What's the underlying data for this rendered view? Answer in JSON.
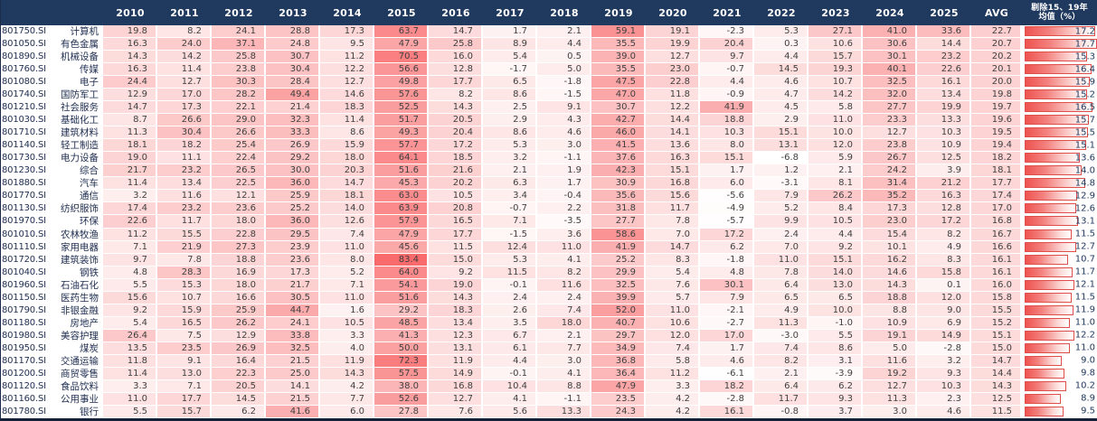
{
  "chart_data": {
    "type": "heatmap",
    "title": "",
    "columns": [
      "2010",
      "2011",
      "2012",
      "2013",
      "2014",
      "2015",
      "2016",
      "2017",
      "2018",
      "2019",
      "2020",
      "2021",
      "2022",
      "2023",
      "2024",
      "2025"
    ],
    "avg_label": "AVG",
    "excl_label_line1": "剔除15、19年",
    "excl_label_line2": "均值（%）",
    "legend_position": "none",
    "color_scale": {
      "min": -7,
      "max": 84,
      "low_color": "#ffffff",
      "high_color": "#f8696b"
    },
    "bar_scale_max": 17.7,
    "rows": [
      {
        "code": "801750.SI",
        "name": "计算机",
        "values": [
          19.8,
          8.2,
          24.1,
          28.8,
          17.3,
          63.7,
          14.7,
          1.7,
          2.1,
          59.1,
          19.1,
          -2.3,
          5.3,
          27.1,
          41.0,
          33.6
        ],
        "avg": 22.7,
        "excl": 17.2
      },
      {
        "code": "801050.SI",
        "name": "有色金属",
        "values": [
          16.3,
          24.0,
          37.1,
          24.8,
          9.5,
          47.9,
          25.8,
          8.9,
          4.4,
          35.5,
          19.9,
          20.4,
          0.3,
          10.6,
          30.6,
          14.4
        ],
        "avg": 20.7,
        "excl": 17.7
      },
      {
        "code": "801890.SI",
        "name": "机械设备",
        "values": [
          14.3,
          14.2,
          25.8,
          30.7,
          11.2,
          70.5,
          16.0,
          5.4,
          0.5,
          39.0,
          12.7,
          9.7,
          4.4,
          15.7,
          30.1,
          23.2
        ],
        "avg": 20.2,
        "excl": 15.3
      },
      {
        "code": "801760.SI",
        "name": "传媒",
        "values": [
          16.3,
          11.4,
          23.8,
          30.4,
          12.2,
          56.6,
          12.8,
          -1.7,
          5.0,
          35.5,
          23.0,
          -0.7,
          14.5,
          19.3,
          40.1,
          22.6
        ],
        "avg": 20.1,
        "excl": 16.4
      },
      {
        "code": "801080.SI",
        "name": "电子",
        "values": [
          24.4,
          12.7,
          30.3,
          28.4,
          12.7,
          49.8,
          17.7,
          6.5,
          -1.8,
          47.5,
          22.8,
          4.4,
          4.6,
          10.7,
          32.5,
          16.1
        ],
        "avg": 20.0,
        "excl": 15.9
      },
      {
        "code": "801740.SI",
        "name": "国防军工",
        "values": [
          12.9,
          17.0,
          28.2,
          49.4,
          14.6,
          57.6,
          8.2,
          8.6,
          -1.5,
          47.0,
          11.8,
          -0.9,
          4.7,
          14.2,
          32.0,
          13.4
        ],
        "avg": 19.8,
        "excl": 15.2
      },
      {
        "code": "801210.SI",
        "name": "社会服务",
        "values": [
          14.7,
          17.3,
          22.1,
          21.4,
          18.3,
          52.5,
          14.3,
          2.5,
          9.1,
          30.7,
          12.2,
          41.9,
          4.5,
          5.8,
          27.7,
          19.9
        ],
        "avg": 19.7,
        "excl": 16.5
      },
      {
        "code": "801030.SI",
        "name": "基础化工",
        "values": [
          8.7,
          26.6,
          29.0,
          32.3,
          11.4,
          51.7,
          20.5,
          2.9,
          4.3,
          42.7,
          14.4,
          18.8,
          2.9,
          11.0,
          23.3,
          13.3
        ],
        "avg": 19.6,
        "excl": 15.7
      },
      {
        "code": "801710.SI",
        "name": "建筑材料",
        "values": [
          11.3,
          30.4,
          26.6,
          33.3,
          8.6,
          49.3,
          20.4,
          8.6,
          4.6,
          46.0,
          14.1,
          10.3,
          15.1,
          10.0,
          12.7,
          10.3
        ],
        "avg": 19.5,
        "excl": 15.5
      },
      {
        "code": "801140.SI",
        "name": "轻工制造",
        "values": [
          18.1,
          18.2,
          25.4,
          26.9,
          15.9,
          57.7,
          17.2,
          5.3,
          3.0,
          41.5,
          13.6,
          8.0,
          13.1,
          12.0,
          23.8,
          10.9
        ],
        "avg": 19.4,
        "excl": 15.1
      },
      {
        "code": "801730.SI",
        "name": "电力设备",
        "values": [
          19.0,
          11.1,
          22.4,
          29.2,
          18.0,
          64.1,
          18.5,
          3.2,
          -1.1,
          37.6,
          16.3,
          15.1,
          -6.8,
          5.9,
          26.7,
          12.5
        ],
        "avg": 18.2,
        "excl": 13.6
      },
      {
        "code": "801230.SI",
        "name": "综合",
        "values": [
          21.7,
          23.2,
          26.5,
          30.0,
          20.3,
          51.6,
          21.6,
          2.1,
          1.9,
          42.3,
          15.1,
          1.7,
          1.2,
          2.1,
          24.2,
          3.9
        ],
        "avg": 18.1,
        "excl": 14.0
      },
      {
        "code": "801880.SI",
        "name": "汽车",
        "values": [
          11.4,
          13.4,
          22.5,
          36.0,
          14.7,
          45.3,
          20.2,
          6.3,
          1.7,
          30.9,
          16.8,
          6.0,
          -3.1,
          8.1,
          31.4,
          21.2
        ],
        "avg": 17.7,
        "excl": 14.8
      },
      {
        "code": "801770.SI",
        "name": "通信",
        "values": [
          3.2,
          11.6,
          12.1,
          25.9,
          18.1,
          63.0,
          10.5,
          3.4,
          -0.4,
          35.6,
          15.6,
          -5.6,
          7.9,
          26.2,
          35.2,
          16.3
        ],
        "avg": 17.4,
        "excl": 12.9
      },
      {
        "code": "801130.SI",
        "name": "纺织服饰",
        "values": [
          17.4,
          23.2,
          23.6,
          25.2,
          14.0,
          63.9,
          20.8,
          -0.7,
          2.2,
          31.8,
          11.7,
          -4.9,
          5.2,
          8.4,
          17.3,
          12.8
        ],
        "avg": 17.0,
        "excl": 12.6
      },
      {
        "code": "801970.SI",
        "name": "环保",
        "values": [
          22.6,
          11.7,
          18.0,
          36.0,
          12.6,
          57.9,
          16.5,
          7.1,
          -3.5,
          27.7,
          7.8,
          -5.7,
          9.9,
          10.5,
          23.0,
          17.2
        ],
        "avg": 16.8,
        "excl": 13.1
      },
      {
        "code": "801010.SI",
        "name": "农林牧渔",
        "values": [
          11.2,
          15.5,
          22.8,
          29.5,
          7.4,
          47.9,
          17.7,
          -1.5,
          3.6,
          58.6,
          7.0,
          17.2,
          2.4,
          4.4,
          15.4,
          8.2
        ],
        "avg": 16.7,
        "excl": 11.5
      },
      {
        "code": "801110.SI",
        "name": "家用电器",
        "values": [
          7.1,
          21.9,
          27.3,
          23.9,
          11.0,
          45.6,
          11.5,
          12.4,
          11.0,
          41.9,
          14.7,
          6.2,
          7.0,
          9.2,
          10.1,
          4.9
        ],
        "avg": 16.6,
        "excl": 12.7
      },
      {
        "code": "801720.SI",
        "name": "建筑装饰",
        "values": [
          9.7,
          7.8,
          18.8,
          23.6,
          8.0,
          83.4,
          15.0,
          5.3,
          4.1,
          25.2,
          8.3,
          -1.8,
          11.0,
          15.1,
          16.2,
          8.3
        ],
        "avg": 16.1,
        "excl": 10.7
      },
      {
        "code": "801040.SI",
        "name": "钢铁",
        "values": [
          4.8,
          28.3,
          16.9,
          17.3,
          5.2,
          64.0,
          9.2,
          11.5,
          8.2,
          29.9,
          5.4,
          4.8,
          7.8,
          14.0,
          14.6,
          15.8
        ],
        "avg": 16.1,
        "excl": 11.7
      },
      {
        "code": "801960.SI",
        "name": "石油石化",
        "values": [
          5.5,
          15.3,
          18.0,
          21.7,
          7.1,
          54.1,
          19.0,
          -0.1,
          11.6,
          32.5,
          7.6,
          30.1,
          6.4,
          13.0,
          14.3,
          0.1
        ],
        "avg": 16.0,
        "excl": 12.1
      },
      {
        "code": "801150.SI",
        "name": "医药生物",
        "values": [
          15.6,
          10.7,
          16.6,
          30.5,
          11.0,
          51.6,
          14.3,
          2.4,
          2.4,
          39.9,
          5.7,
          7.9,
          6.5,
          6.5,
          18.8,
          12.0
        ],
        "avg": 15.8,
        "excl": 11.5
      },
      {
        "code": "801790.SI",
        "name": "非银金融",
        "values": [
          9.2,
          15.9,
          25.9,
          44.7,
          1.6,
          29.2,
          18.3,
          2.6,
          7.4,
          52.0,
          11.0,
          -2.1,
          4.9,
          10.0,
          8.8,
          9.0
        ],
        "avg": 15.5,
        "excl": 11.9
      },
      {
        "code": "801180.SI",
        "name": "房地产",
        "values": [
          5.4,
          16.5,
          26.2,
          24.1,
          10.5,
          48.5,
          13.4,
          3.5,
          18.0,
          40.7,
          10.6,
          -2.7,
          11.3,
          -1.0,
          10.9,
          6.9
        ],
        "avg": 15.2,
        "excl": 11.0
      },
      {
        "code": "801980.SI",
        "name": "美容护理",
        "values": [
          26.4,
          7.5,
          12.9,
          33.8,
          3.3,
          41.3,
          12.3,
          6.7,
          2.1,
          29.7,
          12.0,
          17.0,
          -3.0,
          5.5,
          19.1,
          14.9
        ],
        "avg": 15.1,
        "excl": 12.2
      },
      {
        "code": "801950.SI",
        "name": "煤炭",
        "values": [
          13.5,
          23.5,
          26.9,
          32.5,
          4.0,
          50.0,
          13.1,
          6.1,
          7.7,
          34.9,
          7.4,
          1.7,
          7.4,
          8.6,
          5.0,
          -2.8
        ],
        "avg": 15.0,
        "excl": 11.0
      },
      {
        "code": "801170.SI",
        "name": "交通运输",
        "values": [
          11.8,
          9.1,
          16.4,
          21.5,
          11.9,
          72.3,
          11.9,
          4.4,
          3.0,
          36.8,
          5.8,
          4.6,
          8.2,
          3.1,
          11.6,
          3.2
        ],
        "avg": 14.7,
        "excl": 9.0
      },
      {
        "code": "801200.SI",
        "name": "商贸零售",
        "values": [
          11.4,
          13.0,
          22.3,
          25.0,
          14.3,
          57.5,
          14.9,
          -0.1,
          4.1,
          36.4,
          11.2,
          -6.1,
          2.1,
          -3.9,
          19.2,
          9.3
        ],
        "avg": 14.4,
        "excl": 9.8
      },
      {
        "code": "801120.SI",
        "name": "食品饮料",
        "values": [
          3.3,
          7.1,
          20.5,
          14.1,
          4.2,
          38.0,
          16.8,
          10.4,
          8.8,
          47.9,
          3.3,
          18.2,
          6.4,
          6.2,
          12.7,
          10.3
        ],
        "avg": 14.3,
        "excl": 10.2
      },
      {
        "code": "801160.SI",
        "name": "公用事业",
        "values": [
          11.0,
          17.7,
          14.5,
          21.5,
          7.7,
          52.6,
          12.7,
          4.1,
          -1.1,
          23.5,
          4.2,
          -2.8,
          11.7,
          9.3,
          11.3,
          2.3
        ],
        "avg": 12.5,
        "excl": 8.9
      },
      {
        "code": "801780.SI",
        "name": "银行",
        "values": [
          5.5,
          15.7,
          6.2,
          41.6,
          6.0,
          27.8,
          7.6,
          5.6,
          13.3,
          24.3,
          4.2,
          16.1,
          -0.8,
          3.7,
          3.0,
          4.6
        ],
        "avg": 11.5,
        "excl": 9.5
      }
    ]
  },
  "colors": {
    "header_bg": "#20395e",
    "header_text": "#ffffff",
    "label_text": "#1f2d50",
    "value_text": "#3f3f3f",
    "bar_border": "#de4f4c",
    "bar_fill_start": "#ee5350",
    "excl_value_text": "#20395e"
  }
}
